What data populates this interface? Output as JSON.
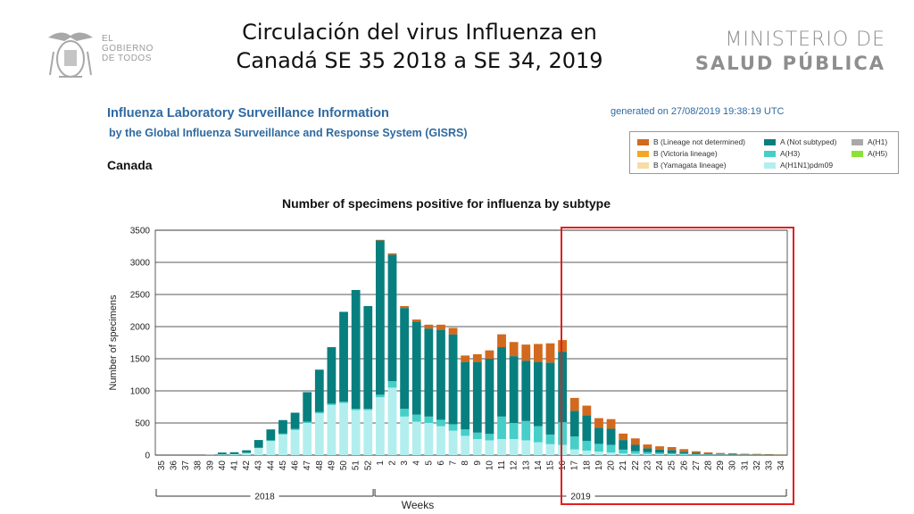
{
  "slide": {
    "title_line1": "Circulación del virus Influenza en",
    "title_line2": "Canadá SE 35 2018 a SE 34, 2019",
    "gobierno": [
      "EL",
      "GOBIERNO",
      "DE TODOS"
    ],
    "ministry_line1": "MINISTERIO DE",
    "ministry_line2": "SALUD PÚBLICA"
  },
  "report": {
    "heading": "Influenza Laboratory Surveillance Information",
    "subheading": "by the Global Influenza Surveillance and Response System (GISRS)",
    "generated": "generated on 27/08/2019 19:38:19 UTC",
    "country": "Canada"
  },
  "colors": {
    "b_lineage_nd": "#d2691e",
    "b_victoria": "#f5a623",
    "b_yamagata": "#f7dca6",
    "a_not_subtyped": "#087f7f",
    "a_h3": "#45cfc8",
    "a_h1n1pdm09": "#b3eeee",
    "a_h1": "#a9a9a9",
    "a_h5": "#8ae234",
    "highlight": "#e02020"
  },
  "legend": [
    {
      "label": "B (Lineage not determined)",
      "color_key": "b_lineage_nd"
    },
    {
      "label": "B (Victoria lineage)",
      "color_key": "b_victoria"
    },
    {
      "label": "B (Yamagata lineage)",
      "color_key": "b_yamagata"
    },
    {
      "label": "A (Not subtyped)",
      "color_key": "a_not_subtyped"
    },
    {
      "label": "A(H3)",
      "color_key": "a_h3"
    },
    {
      "label": "A(H1N1)pdm09",
      "color_key": "a_h1n1pdm09"
    },
    {
      "label": "A(H1)",
      "color_key": "a_h1"
    },
    {
      "label": "A(H5)",
      "color_key": "a_h5"
    }
  ],
  "chart_data": {
    "type": "bar",
    "stacked": true,
    "title": "Number of specimens positive for influenza by subtype",
    "xlabel": "Weeks",
    "ylabel": "Number of specimens",
    "ylim": [
      0,
      3500
    ],
    "yticks": [
      0,
      500,
      1000,
      1500,
      2000,
      2500,
      3000,
      3500
    ],
    "grid": true,
    "year_labels": [
      {
        "label": "2018",
        "from": "35",
        "to": "52"
      },
      {
        "label": "2019",
        "from": "1",
        "to": "34"
      }
    ],
    "highlight_range": {
      "from": "16",
      "to": "34"
    },
    "categories": [
      "35",
      "36",
      "37",
      "38",
      "39",
      "40",
      "41",
      "42",
      "43",
      "44",
      "45",
      "46",
      "47",
      "48",
      "49",
      "50",
      "51",
      "52",
      "1",
      "2",
      "3",
      "4",
      "5",
      "6",
      "7",
      "8",
      "9",
      "10",
      "11",
      "12",
      "13",
      "14",
      "15",
      "16",
      "17",
      "18",
      "19",
      "20",
      "21",
      "22",
      "23",
      "24",
      "25",
      "26",
      "27",
      "28",
      "29",
      "30",
      "31",
      "32",
      "33",
      "34"
    ],
    "series": [
      {
        "name": "A(H1N1)pdm09",
        "color_key": "a_h1n1pdm09",
        "values": [
          0,
          0,
          0,
          0,
          3,
          10,
          15,
          35,
          110,
          220,
          320,
          390,
          500,
          650,
          780,
          810,
          700,
          700,
          900,
          1050,
          600,
          520,
          500,
          450,
          380,
          300,
          250,
          230,
          250,
          250,
          230,
          200,
          170,
          160,
          90,
          70,
          55,
          40,
          25,
          20,
          15,
          12,
          10,
          8,
          5,
          4,
          4,
          3,
          2,
          2,
          2,
          1
        ]
      },
      {
        "name": "A(H3)",
        "color_key": "a_h3",
        "values": [
          0,
          0,
          0,
          0,
          0,
          0,
          0,
          0,
          5,
          10,
          15,
          20,
          20,
          20,
          20,
          20,
          20,
          20,
          40,
          100,
          120,
          110,
          100,
          100,
          100,
          100,
          100,
          100,
          350,
          250,
          300,
          250,
          150,
          350,
          200,
          150,
          120,
          120,
          60,
          40,
          30,
          25,
          20,
          15,
          10,
          8,
          6,
          5,
          4,
          3,
          2,
          2
        ]
      },
      {
        "name": "A (Not subtyped)",
        "color_key": "a_not_subtyped",
        "values": [
          0,
          0,
          0,
          0,
          0,
          30,
          30,
          40,
          120,
          170,
          210,
          250,
          460,
          660,
          880,
          1400,
          1850,
          1600,
          2400,
          1970,
          1570,
          1450,
          1370,
          1400,
          1400,
          1050,
          1100,
          1170,
          1080,
          1040,
          940,
          1000,
          1120,
          1100,
          400,
          400,
          250,
          250,
          150,
          100,
          60,
          50,
          50,
          30,
          20,
          10,
          8,
          6,
          5,
          4,
          3,
          2
        ]
      },
      {
        "name": "B (Lineage not determined)",
        "color_key": "b_lineage_nd",
        "values": [
          0,
          0,
          0,
          0,
          0,
          0,
          0,
          0,
          0,
          0,
          0,
          0,
          0,
          0,
          0,
          0,
          0,
          0,
          10,
          20,
          30,
          30,
          60,
          80,
          100,
          100,
          120,
          130,
          200,
          220,
          250,
          280,
          300,
          180,
          200,
          150,
          150,
          150,
          100,
          100,
          60,
          50,
          45,
          40,
          25,
          20,
          15,
          15,
          10,
          10,
          8,
          5
        ]
      }
    ]
  }
}
